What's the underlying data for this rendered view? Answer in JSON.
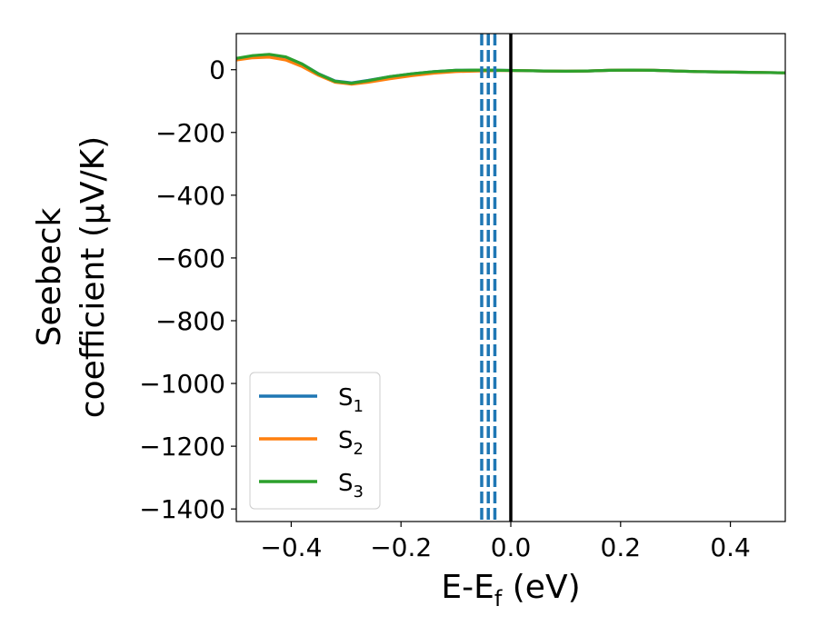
{
  "chart_data": {
    "type": "line",
    "xlabel": "E-E",
    "xlabel_sub": "f",
    "xlabel_unit": " (eV)",
    "ylabel_line1": "Seebeck",
    "ylabel_line2": "coefficient  (μV/K)",
    "xlim": [
      -0.5,
      0.5
    ],
    "ylim": [
      -1440,
      115
    ],
    "xticks": [
      -0.4,
      -0.2,
      0.0,
      0.2,
      0.4
    ],
    "xtick_labels": [
      "−0.4",
      "−0.2",
      "0.0",
      "0.2",
      "0.4"
    ],
    "yticks": [
      0,
      -200,
      -400,
      -600,
      -800,
      -1000,
      -1200,
      -1400
    ],
    "ytick_labels": [
      "0",
      "−200",
      "−400",
      "−600",
      "−800",
      "−1000",
      "−1200",
      "−1400"
    ],
    "grid": false,
    "legend_placement": "lower-left",
    "series": [
      {
        "name": "S",
        "sub": "1",
        "color": "#1f77b4",
        "x": [
          -0.5,
          -0.47,
          -0.44,
          -0.41,
          -0.38,
          -0.35,
          -0.32,
          -0.29,
          -0.26,
          -0.22,
          -0.18,
          -0.14,
          -0.1,
          -0.06,
          -0.02,
          0.02,
          0.06,
          0.1,
          0.14,
          0.18,
          0.22,
          0.26,
          0.3,
          0.34,
          0.38,
          0.42,
          0.46,
          0.5
        ],
        "y": [
          35,
          44,
          48,
          40,
          18,
          -13,
          -36,
          -42,
          -34,
          -22,
          -13,
          -6,
          -2,
          -1,
          -2,
          -3,
          -4,
          -5,
          -4,
          -2,
          -1,
          -2,
          -4,
          -6,
          -7,
          -8,
          -9,
          -10
        ]
      },
      {
        "name": "S",
        "sub": "2",
        "color": "#ff7f0e",
        "x": [
          -0.5,
          -0.47,
          -0.44,
          -0.41,
          -0.38,
          -0.35,
          -0.32,
          -0.29,
          -0.26,
          -0.22,
          -0.18,
          -0.14,
          -0.1,
          -0.06,
          -0.02,
          0.02,
          0.06,
          0.1,
          0.14,
          0.18,
          0.22,
          0.26,
          0.3,
          0.34,
          0.38,
          0.42,
          0.46,
          0.5
        ],
        "y": [
          31,
          38,
          40,
          31,
          10,
          -18,
          -40,
          -46,
          -40,
          -29,
          -19,
          -11,
          -6,
          -4,
          -3,
          -3,
          -4,
          -5,
          -4,
          -2,
          -1,
          -2,
          -4,
          -6,
          -7,
          -8,
          -9,
          -10
        ]
      },
      {
        "name": "S",
        "sub": "3",
        "color": "#2ca02c",
        "x": [
          -0.5,
          -0.47,
          -0.44,
          -0.41,
          -0.38,
          -0.35,
          -0.32,
          -0.29,
          -0.26,
          -0.22,
          -0.18,
          -0.14,
          -0.1,
          -0.06,
          -0.02,
          0.02,
          0.06,
          0.1,
          0.14,
          0.18,
          0.22,
          0.26,
          0.3,
          0.34,
          0.38,
          0.42,
          0.46,
          0.5
        ],
        "y": [
          36,
          45,
          49,
          41,
          18,
          -14,
          -37,
          -43,
          -35,
          -22,
          -13,
          -6,
          -2,
          -1,
          -2,
          -3,
          -4,
          -5,
          -4,
          -2,
          -1,
          -2,
          -4,
          -6,
          -7,
          -8,
          -9,
          -10
        ]
      }
    ],
    "vlines": [
      {
        "x": -0.053,
        "style": "dashed",
        "color": "#1f77b4"
      },
      {
        "x": -0.041,
        "style": "dashed",
        "color": "#1f77b4"
      },
      {
        "x": -0.029,
        "style": "dashed",
        "color": "#1f77b4"
      },
      {
        "x": 0.0,
        "style": "solid",
        "color": "#000000"
      }
    ]
  }
}
